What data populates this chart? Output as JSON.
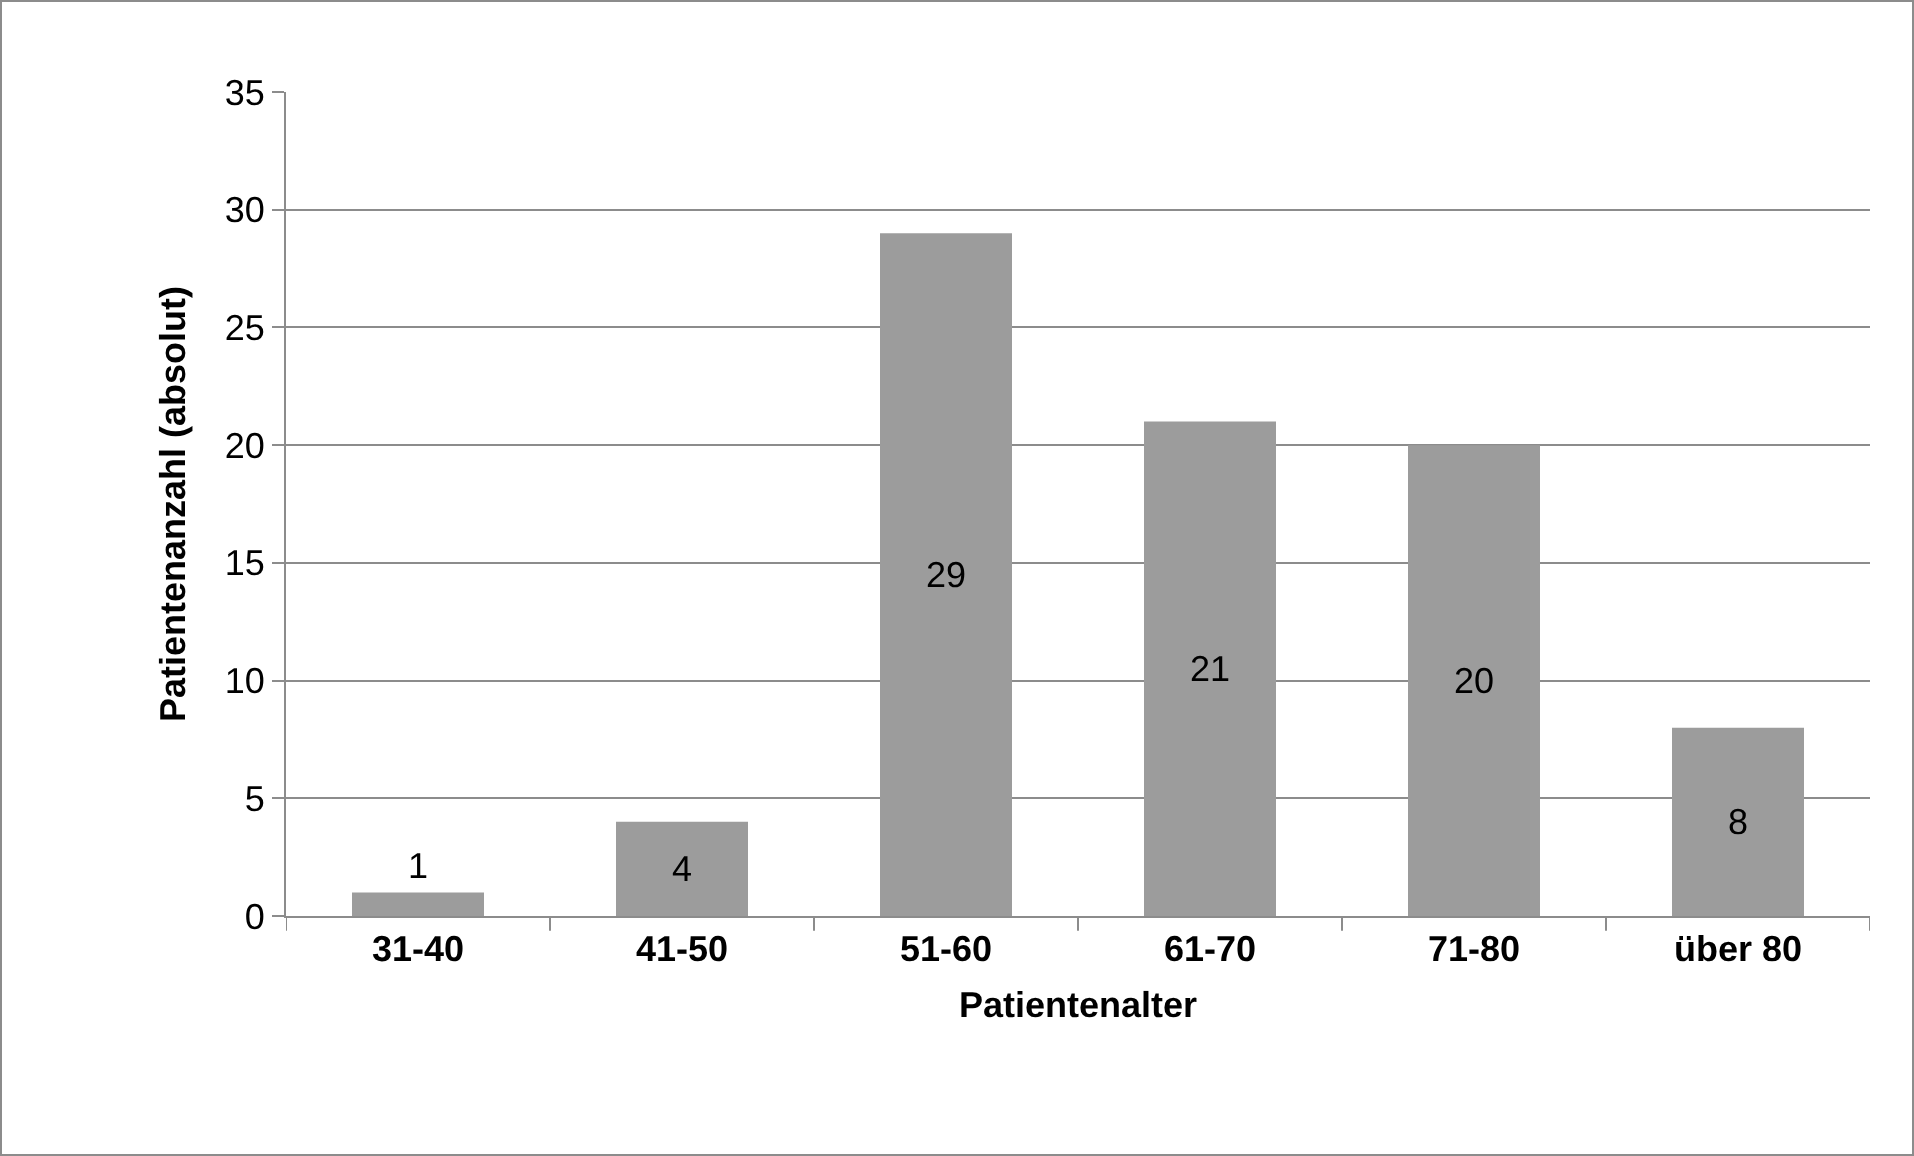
{
  "chart_data": {
    "type": "bar",
    "xlabel": "Patientenalter",
    "ylabel": "Patientenanzahl (absolut)",
    "categories": [
      "31-40",
      "41-50",
      "51-60",
      "61-70",
      "71-80",
      "über 80"
    ],
    "values": [
      1,
      4,
      29,
      21,
      20,
      8
    ],
    "color": "#9c9c9c",
    "ylim": [
      0,
      35
    ],
    "yticks": [
      0,
      5,
      10,
      15,
      20,
      25,
      30,
      35
    ],
    "grid": "y",
    "data_labels": true,
    "legend": false
  }
}
